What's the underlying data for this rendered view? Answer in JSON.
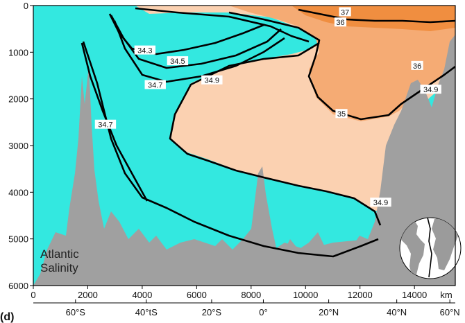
{
  "chart_data": {
    "type": "heatmap",
    "title": "Atlantic Salinity",
    "title_lines": [
      "Atlantic",
      "Salinity"
    ],
    "panel_label": "(d)",
    "x_unit": "km",
    "xlim": [
      0,
      15500
    ],
    "ylim": [
      0,
      6000
    ],
    "y_inverted": true,
    "x_ticks": [
      0,
      2000,
      4000,
      6000,
      8000,
      10000,
      12000,
      14000
    ],
    "y_ticks": [
      0,
      1000,
      2000,
      3000,
      4000,
      5000,
      6000
    ],
    "lat_ticks": [
      {
        "label": "60°S",
        "km": 1550
      },
      {
        "label": "40°tS",
        "km": 4150
      },
      {
        "label": "20°S",
        "km": 6550
      },
      {
        "label": "0°",
        "km": 8450
      },
      {
        "label": "20°N",
        "km": 10850
      },
      {
        "label": "40°N",
        "km": 13350
      },
      {
        "label": "60°N",
        "km": 15300
      }
    ],
    "colors": {
      "fresh": "#33e8e0",
      "fresh_light": "#80f0ea",
      "saline_light": "#fbd1b1",
      "saline_mid": "#f5ab74",
      "saline_high": "#f08e40",
      "bathymetry": "#a0a0a0",
      "contour": "#000000"
    },
    "contour_labels": [
      {
        "value": "37",
        "x": 11450,
        "y": 140
      },
      {
        "value": "36",
        "x": 11280,
        "y": 360
      },
      {
        "value": "36",
        "x": 14100,
        "y": 1290
      },
      {
        "value": "34.3",
        "x": 4100,
        "y": 960
      },
      {
        "value": "34.5",
        "x": 5300,
        "y": 1190
      },
      {
        "value": "34.7",
        "x": 4480,
        "y": 1700
      },
      {
        "value": "34.9",
        "x": 6560,
        "y": 1600
      },
      {
        "value": "34.9",
        "x": 14600,
        "y": 1800
      },
      {
        "value": "35",
        "x": 11320,
        "y": 2320
      },
      {
        "value": "34.7",
        "x": 2650,
        "y": 2550
      },
      {
        "value": "34.9",
        "x": 12760,
        "y": 4220
      }
    ],
    "inset_map": "atlantic-world-map-with-section-line"
  }
}
